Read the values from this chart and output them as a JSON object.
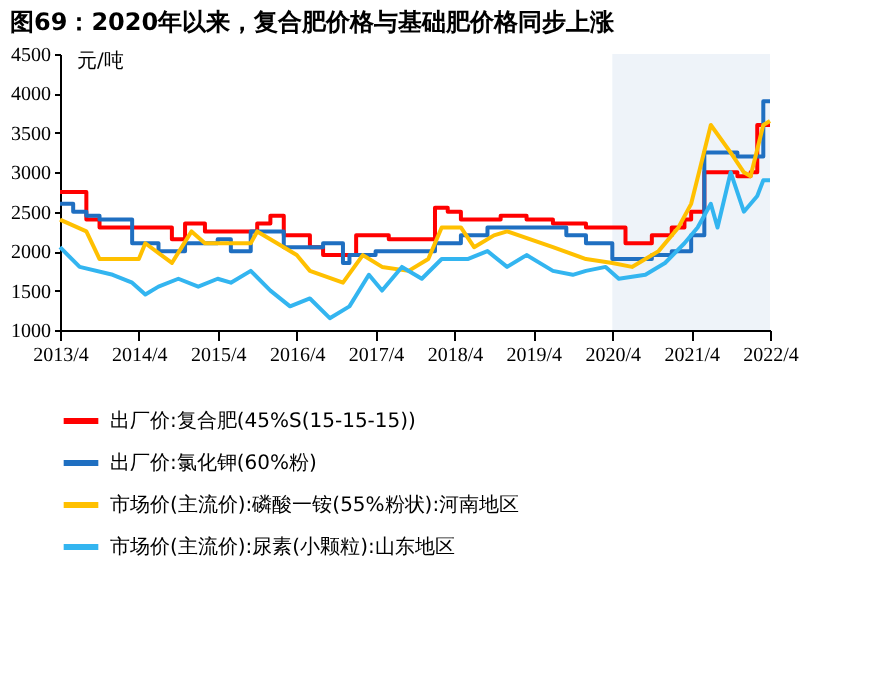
{
  "chart_data": {
    "type": "line",
    "title": "图69：2020年以来，复合肥价格与基础肥价格同步上涨",
    "ylabel": "元/吨",
    "xlim": [
      "2013-04",
      "2022-04"
    ],
    "xticks": [
      {
        "value": "2013-04",
        "label": "2013/4"
      },
      {
        "value": "2014-04",
        "label": "2014/4"
      },
      {
        "value": "2015-04",
        "label": "2015/4"
      },
      {
        "value": "2016-04",
        "label": "2016/4"
      },
      {
        "value": "2017-04",
        "label": "2017/4"
      },
      {
        "value": "2018-04",
        "label": "2018/4"
      },
      {
        "value": "2019-04",
        "label": "2019/4"
      },
      {
        "value": "2020-04",
        "label": "2020/4"
      },
      {
        "value": "2021-04",
        "label": "2021/4"
      },
      {
        "value": "2022-04",
        "label": "2022/4"
      }
    ],
    "ylim": [
      1000,
      4500
    ],
    "yticks": [
      1000,
      1500,
      2000,
      2500,
      3000,
      3500,
      4000,
      4500
    ],
    "grid": false,
    "legend": "bottom",
    "bands": [
      {
        "axis": "x",
        "from": "2020-04",
        "to": "2022-04",
        "color": "#eef3f9"
      }
    ],
    "series": [
      {
        "name": "出厂价:复合肥(45%S(15-15-15))",
        "type": "step",
        "color": "#ff0000",
        "x": [
          "2013-04",
          "2013-08",
          "2013-10",
          "2014-09",
          "2014-11",
          "2015-02",
          "2015-10",
          "2015-12",
          "2016-02",
          "2016-06",
          "2016-08",
          "2017-01",
          "2017-06",
          "2018-01",
          "2018-03",
          "2018-05",
          "2018-11",
          "2019-03",
          "2019-07",
          "2019-12",
          "2020-06",
          "2020-10",
          "2021-01",
          "2021-03",
          "2021-04",
          "2021-06",
          "2021-11",
          "2022-01",
          "2022-02",
          "2022-04"
        ],
        "values": [
          2750,
          2400,
          2300,
          2150,
          2350,
          2250,
          2350,
          2450,
          2200,
          2050,
          1950,
          2200,
          2150,
          2550,
          2500,
          2400,
          2450,
          2400,
          2350,
          2300,
          2100,
          2200,
          2300,
          2400,
          2500,
          3000,
          2950,
          3000,
          3600,
          3600
        ]
      },
      {
        "name": "出厂价:氯化钾(60%粉)",
        "type": "step",
        "color": "#1f6fc1",
        "x": [
          "2013-04",
          "2013-06",
          "2013-08",
          "2013-10",
          "2014-03",
          "2014-07",
          "2014-11",
          "2015-04",
          "2015-06",
          "2015-09",
          "2016-02",
          "2016-08",
          "2016-11",
          "2016-12",
          "2017-04",
          "2018-01",
          "2018-05",
          "2018-09",
          "2019-09",
          "2019-12",
          "2020-04",
          "2020-10",
          "2021-01",
          "2021-04",
          "2021-06",
          "2021-11",
          "2022-03",
          "2022-04"
        ],
        "values": [
          2600,
          2500,
          2450,
          2400,
          2100,
          2000,
          2100,
          2150,
          2000,
          2250,
          2050,
          2100,
          1850,
          1950,
          2000,
          2100,
          2200,
          2300,
          2200,
          2100,
          1900,
          1950,
          2000,
          2200,
          3250,
          3200,
          3900,
          3900
        ]
      },
      {
        "name": "市场价(主流价):磷酸一铵(55%粉状):河南地区",
        "type": "line",
        "color": "#ffc000",
        "x": [
          "2013-04",
          "2013-08",
          "2013-10",
          "2014-04",
          "2014-05",
          "2014-09",
          "2014-12",
          "2015-02",
          "2015-09",
          "2015-10",
          "2016-01",
          "2016-04",
          "2016-06",
          "2016-11",
          "2017-02",
          "2017-05",
          "2017-09",
          "2017-12",
          "2018-02",
          "2018-05",
          "2018-07",
          "2018-10",
          "2018-12",
          "2019-07",
          "2019-12",
          "2020-04",
          "2020-07",
          "2020-11",
          "2021-02",
          "2021-04",
          "2021-07",
          "2021-10",
          "2021-12",
          "2022-01",
          "2022-03",
          "2022-04"
        ],
        "values": [
          2400,
          2250,
          1900,
          1900,
          2100,
          1850,
          2250,
          2100,
          2100,
          2250,
          2100,
          1950,
          1750,
          1600,
          1950,
          1800,
          1750,
          1900,
          2300,
          2300,
          2050,
          2200,
          2250,
          2050,
          1900,
          1850,
          1800,
          2000,
          2300,
          2600,
          3600,
          3250,
          3000,
          2950,
          3600,
          3650
        ]
      },
      {
        "name": "市场价(主流价):尿素(小颗粒):山东地区",
        "type": "line",
        "color": "#33b5f0",
        "x": [
          "2013-04",
          "2013-07",
          "2013-12",
          "2014-03",
          "2014-05",
          "2014-07",
          "2014-10",
          "2015-01",
          "2015-04",
          "2015-06",
          "2015-09",
          "2015-12",
          "2016-03",
          "2016-06",
          "2016-09",
          "2016-12",
          "2017-03",
          "2017-05",
          "2017-08",
          "2017-11",
          "2018-02",
          "2018-06",
          "2018-09",
          "2018-12",
          "2019-03",
          "2019-07",
          "2019-10",
          "2019-12",
          "2020-03",
          "2020-05",
          "2020-09",
          "2020-12",
          "2021-03",
          "2021-05",
          "2021-07",
          "2021-08",
          "2021-10",
          "2021-12",
          "2022-02",
          "2022-03",
          "2022-04"
        ],
        "values": [
          2050,
          1800,
          1700,
          1600,
          1450,
          1550,
          1650,
          1550,
          1650,
          1600,
          1750,
          1500,
          1300,
          1400,
          1150,
          1300,
          1700,
          1500,
          1800,
          1650,
          1900,
          1900,
          2000,
          1800,
          1950,
          1750,
          1700,
          1750,
          1800,
          1650,
          1700,
          1850,
          2100,
          2300,
          2600,
          2300,
          3000,
          2500,
          2700,
          2900,
          2900
        ]
      }
    ]
  }
}
